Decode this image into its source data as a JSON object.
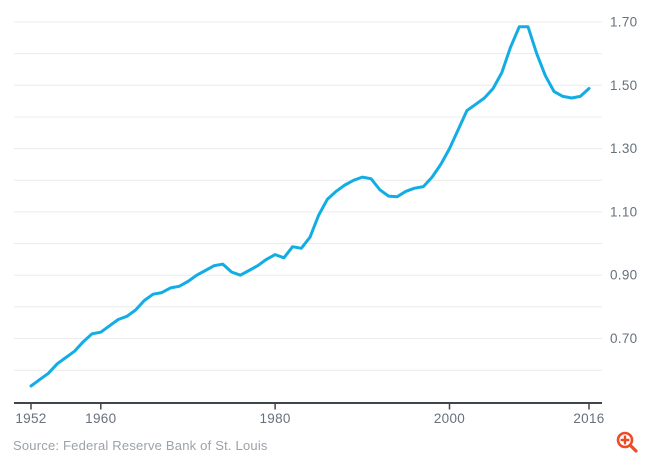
{
  "chart_data": {
    "type": "line",
    "x": [
      1952,
      1953,
      1954,
      1955,
      1956,
      1957,
      1958,
      1959,
      1960,
      1961,
      1962,
      1963,
      1964,
      1965,
      1966,
      1967,
      1968,
      1969,
      1970,
      1971,
      1972,
      1973,
      1974,
      1975,
      1976,
      1977,
      1978,
      1979,
      1980,
      1981,
      1982,
      1983,
      1984,
      1985,
      1986,
      1987,
      1988,
      1989,
      1990,
      1991,
      1992,
      1993,
      1994,
      1995,
      1996,
      1997,
      1998,
      1999,
      2000,
      2001,
      2002,
      2003,
      2004,
      2005,
      2006,
      2007,
      2008,
      2009,
      2010,
      2011,
      2012,
      2013,
      2014,
      2015,
      2016
    ],
    "y": [
      0.55,
      0.57,
      0.59,
      0.62,
      0.64,
      0.66,
      0.69,
      0.715,
      0.72,
      0.74,
      0.76,
      0.77,
      0.79,
      0.82,
      0.84,
      0.845,
      0.86,
      0.865,
      0.88,
      0.9,
      0.915,
      0.93,
      0.935,
      0.91,
      0.9,
      0.915,
      0.93,
      0.95,
      0.965,
      0.955,
      0.99,
      0.985,
      1.02,
      1.09,
      1.14,
      1.165,
      1.185,
      1.2,
      1.21,
      1.205,
      1.17,
      1.15,
      1.148,
      1.165,
      1.175,
      1.18,
      1.21,
      1.25,
      1.3,
      1.36,
      1.42,
      1.44,
      1.46,
      1.49,
      1.54,
      1.62,
      1.685,
      1.685,
      1.6,
      1.53,
      1.48,
      1.465,
      1.46,
      1.465,
      1.49
    ],
    "xlabel": "",
    "ylabel": "",
    "xlim": [
      1950.8,
      2017.5
    ],
    "ylim": [
      0.495,
      1.77
    ],
    "x_tick_values": [
      1952,
      1960,
      1980,
      2000,
      2016
    ],
    "x_tick_labels": [
      "1952",
      "1960",
      "1980",
      "2000",
      "2016"
    ],
    "y_tick_values": [
      1.7,
      1.5,
      1.3,
      1.1,
      0.9,
      0.7
    ],
    "y_tick_labels": [
      "1.70",
      "1.50",
      "1.30",
      "1.10",
      "0.90",
      "0.70"
    ],
    "gridline_values": [
      1.7,
      1.6,
      1.5,
      1.4,
      1.3,
      1.2,
      1.1,
      1.0,
      0.9,
      0.8,
      0.7,
      0.6
    ],
    "grid": "horizontal",
    "legend_position": "none",
    "y_axis_side": "right"
  },
  "footer": {
    "source": "Source: Federal Reserve Bank of St. Louis"
  },
  "icons": {
    "zoom": "zoom-in-icon"
  },
  "colors": {
    "line": "#12ADE4",
    "grid": "#ECECEC",
    "axis": "#3F474E",
    "tick_label": "#67717C",
    "source_text": "#9BA2AA",
    "zoom_icon": "#F04C23",
    "background": "#FFFFFF"
  }
}
